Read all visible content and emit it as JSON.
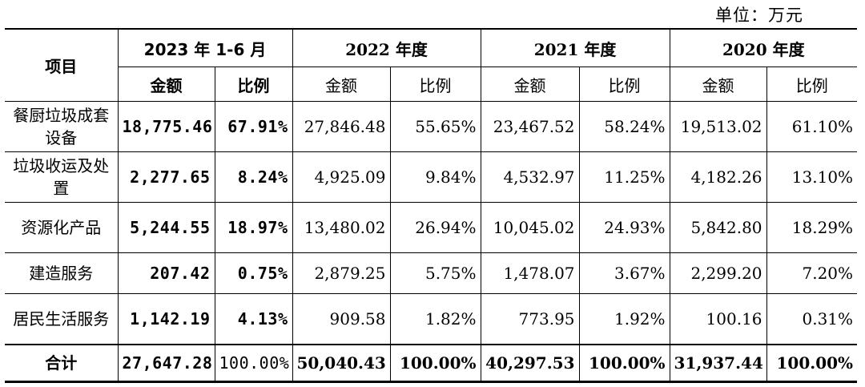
{
  "unit_label": "单位：万元",
  "headers": {
    "item": "项目",
    "periods": [
      "2023 年 1-6 月",
      "2022 年度",
      "2021 年度",
      "2020 年度"
    ],
    "amount": "金额",
    "ratio": "比例"
  },
  "rows": [
    {
      "name": "餐厨垃圾成套设备",
      "v": [
        "18,775.46",
        "67.91%",
        "27,846.48",
        "55.65%",
        "23,467.52",
        "58.24%",
        "19,513.02",
        "61.10%"
      ]
    },
    {
      "name": "垃圾收运及处置",
      "v": [
        "2,277.65",
        "8.24%",
        "4,925.09",
        "9.84%",
        "4,532.97",
        "11.25%",
        "4,182.26",
        "13.10%"
      ]
    },
    {
      "name": "资源化产品",
      "v": [
        "5,244.55",
        "18.97%",
        "13,480.02",
        "26.94%",
        "10,045.02",
        "24.93%",
        "5,842.80",
        "18.29%"
      ]
    },
    {
      "name": "建造服务",
      "v": [
        "207.42",
        "0.75%",
        "2,879.25",
        "5.75%",
        "1,478.07",
        "3.67%",
        "2,299.20",
        "7.20%"
      ]
    },
    {
      "name": "居民生活服务",
      "v": [
        "1,142.19",
        "4.13%",
        "909.58",
        "1.82%",
        "773.95",
        "1.92%",
        "100.16",
        "0.31%"
      ]
    }
  ],
  "total": {
    "name": "合计",
    "v": [
      "27,647.28",
      "100.00%",
      "50,040.43",
      "100.00%",
      "40,297.53",
      "100.00%",
      "31,937.44",
      "100.00%"
    ]
  }
}
